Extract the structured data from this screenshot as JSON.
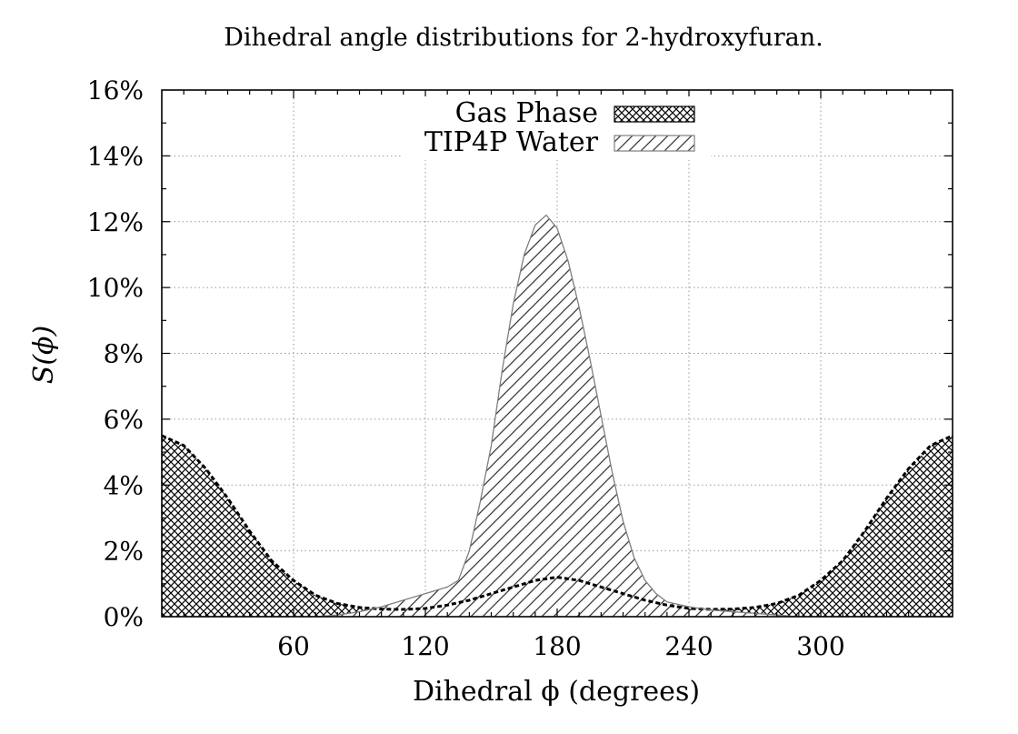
{
  "chart_data": {
    "type": "area",
    "title": "Dihedral angle distributions for 2-hydroxyfuran.",
    "xlabel": "Dihedral ϕ (degrees)",
    "ylabel": "S(ϕ)",
    "xlim": [
      0,
      360
    ],
    "ylim": [
      0,
      16
    ],
    "x_ticks": [
      60,
      120,
      180,
      240,
      300
    ],
    "x_tick_labels": [
      "60",
      "120",
      "180",
      "240",
      "300"
    ],
    "y_ticks": [
      0,
      2,
      4,
      6,
      8,
      10,
      12,
      14,
      16
    ],
    "y_tick_labels": [
      "0%",
      "2%",
      "4%",
      "6%",
      "8%",
      "10%",
      "12%",
      "14%",
      "16%"
    ],
    "grid": true,
    "legend_position": "top-center",
    "series": [
      {
        "name": "Gas Phase",
        "fill_pattern": "crosshatch",
        "line_style": "dashed",
        "color": "#000000",
        "x": [
          0,
          10,
          20,
          30,
          40,
          50,
          60,
          70,
          80,
          90,
          100,
          110,
          120,
          130,
          140,
          150,
          160,
          170,
          180,
          190,
          200,
          210,
          220,
          230,
          240,
          250,
          260,
          270,
          280,
          290,
          300,
          310,
          320,
          330,
          340,
          350,
          360
        ],
        "values": [
          5.5,
          5.2,
          4.5,
          3.6,
          2.6,
          1.7,
          1.1,
          0.65,
          0.4,
          0.28,
          0.23,
          0.22,
          0.25,
          0.35,
          0.5,
          0.7,
          0.9,
          1.1,
          1.2,
          1.1,
          0.9,
          0.7,
          0.5,
          0.35,
          0.25,
          0.22,
          0.23,
          0.28,
          0.4,
          0.65,
          1.1,
          1.7,
          2.6,
          3.6,
          4.5,
          5.2,
          5.5
        ]
      },
      {
        "name": "TIP4P Water",
        "fill_pattern": "diagonal",
        "line_style": "solid",
        "color": "#7f7f7f",
        "x": [
          70,
          80,
          90,
          100,
          110,
          120,
          130,
          135,
          140,
          145,
          150,
          155,
          160,
          165,
          170,
          175,
          180,
          185,
          190,
          195,
          200,
          205,
          210,
          215,
          220,
          225,
          230,
          240,
          250,
          260,
          270,
          280,
          290
        ],
        "values": [
          0.0,
          0.05,
          0.15,
          0.3,
          0.5,
          0.7,
          0.9,
          1.1,
          2.0,
          3.5,
          5.2,
          7.5,
          9.5,
          11.0,
          11.9,
          12.2,
          11.8,
          10.8,
          9.4,
          7.8,
          6.1,
          4.4,
          2.9,
          1.8,
          1.1,
          0.7,
          0.45,
          0.3,
          0.2,
          0.15,
          0.1,
          0.05,
          0.0
        ]
      }
    ]
  }
}
